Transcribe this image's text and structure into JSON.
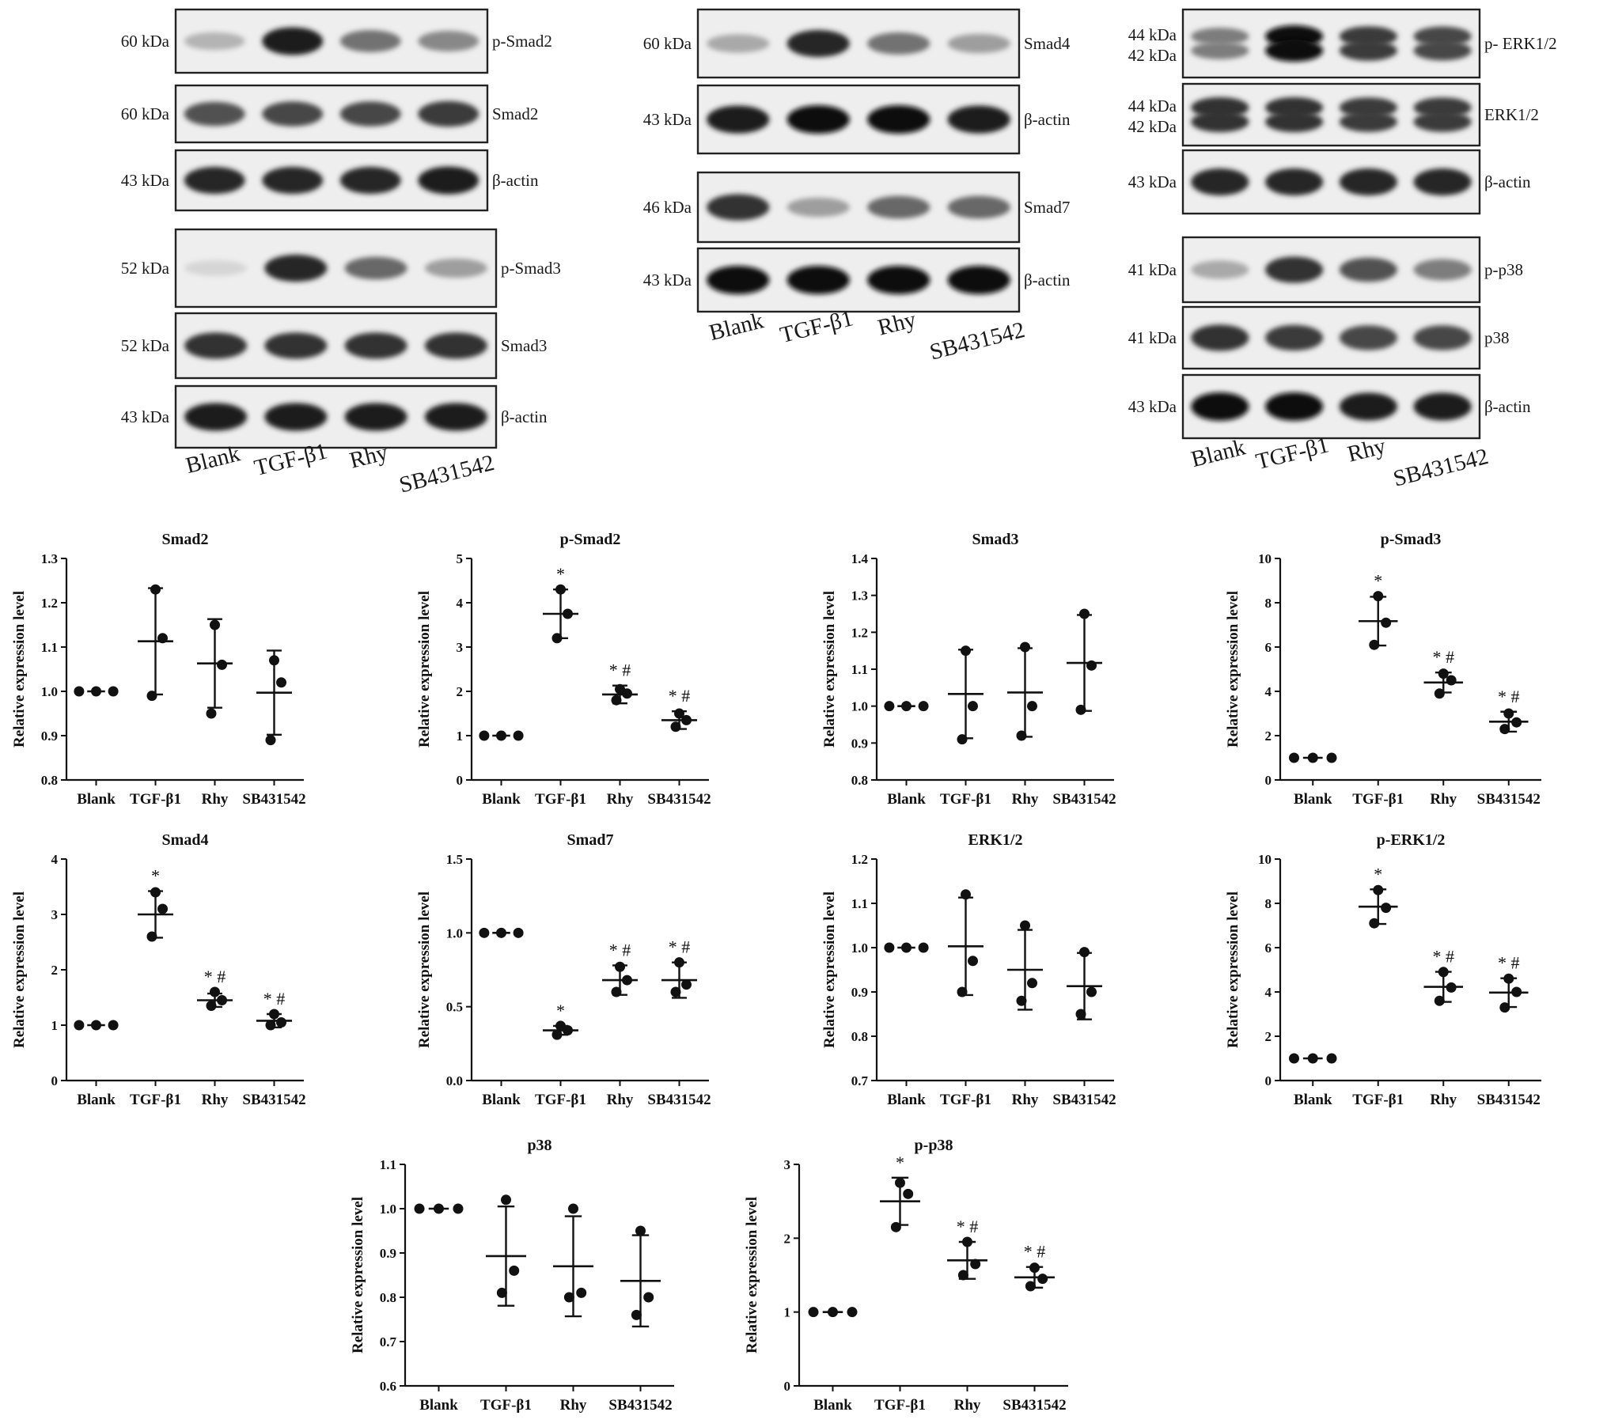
{
  "blots": {
    "lanes": [
      "Blank",
      "TGF-β1",
      "Rhy",
      "SB431542"
    ],
    "groups": [
      {
        "rows": [
          {
            "protein": "p-Smad2",
            "mw": "60 kDa",
            "intensity": [
              0.25,
              0.95,
              0.55,
              0.45
            ]
          },
          {
            "protein": "Smad2",
            "mw": "60 kDa",
            "intensity": [
              0.7,
              0.75,
              0.75,
              0.8
            ]
          },
          {
            "protein": "β-actin",
            "mw": "43 kDa",
            "intensity": [
              0.9,
              0.9,
              0.9,
              0.95
            ]
          }
        ]
      },
      {
        "rows": [
          {
            "protein": "p-Smad3",
            "mw": "52 kDa",
            "intensity": [
              0.1,
              0.9,
              0.6,
              0.35
            ]
          },
          {
            "protein": "Smad3",
            "mw": "52 kDa",
            "intensity": [
              0.85,
              0.85,
              0.85,
              0.85
            ]
          },
          {
            "protein": "β-actin",
            "mw": "43 kDa",
            "intensity": [
              0.95,
              0.95,
              0.95,
              0.95
            ]
          }
        ]
      },
      {
        "rows": [
          {
            "protein": "Smad4",
            "mw": "60 kDa",
            "intensity": [
              0.3,
              0.9,
              0.55,
              0.35
            ]
          },
          {
            "protein": "β-actin",
            "mw": "43 kDa",
            "intensity": [
              0.95,
              1.0,
              1.0,
              0.95
            ]
          }
        ]
      },
      {
        "rows": [
          {
            "protein": "Smad7",
            "mw": "46 kDa",
            "intensity": [
              0.85,
              0.35,
              0.6,
              0.6
            ]
          },
          {
            "protein": "β-actin",
            "mw": "43 kDa",
            "intensity": [
              1.0,
              1.0,
              1.0,
              1.0
            ]
          }
        ]
      },
      {
        "rows": [
          {
            "protein": "p- ERK1/2",
            "mw": "44 kDa",
            "mw2": "42 kDa",
            "intensity": [
              0.5,
              1.0,
              0.8,
              0.75
            ]
          },
          {
            "protein": "ERK1/2",
            "mw": "44 kDa",
            "mw2": "42 kDa",
            "intensity": [
              0.85,
              0.85,
              0.8,
              0.8
            ]
          },
          {
            "protein": "β-actin",
            "mw": "43 kDa",
            "intensity": [
              0.9,
              0.9,
              0.9,
              0.9
            ]
          }
        ]
      },
      {
        "rows": [
          {
            "protein": "p-p38",
            "mw": "41 kDa",
            "intensity": [
              0.3,
              0.85,
              0.7,
              0.5
            ]
          },
          {
            "protein": "p38",
            "mw": "41 kDa",
            "intensity": [
              0.85,
              0.8,
              0.75,
              0.75
            ]
          },
          {
            "protein": "β-actin",
            "mw": "43 kDa",
            "intensity": [
              1.0,
              1.0,
              0.95,
              0.95
            ]
          }
        ]
      }
    ]
  },
  "chart_data": [
    {
      "type": "scatter",
      "title": "Smad2",
      "ylabel": "Relative expression level",
      "categories": [
        "Blank",
        "TGF-β1",
        "Rhy",
        "SB431542"
      ],
      "ylim": [
        0.8,
        1.3
      ],
      "yticks": [
        "0.8",
        "0.9",
        "1.0",
        "1.1",
        "1.2",
        "1.3"
      ],
      "points": [
        [
          1.0,
          1.0,
          1.0
        ],
        [
          0.99,
          1.12,
          1.23
        ],
        [
          0.95,
          1.06,
          1.15
        ],
        [
          0.89,
          1.02,
          1.07
        ]
      ],
      "mean": [
        1.0,
        1.113,
        1.063,
        0.997
      ],
      "sd": [
        0.0,
        0.12,
        0.1,
        0.095
      ],
      "markers": [
        "",
        "",
        "",
        ""
      ]
    },
    {
      "type": "scatter",
      "title": "p-Smad2",
      "ylabel": "Relative expression level",
      "categories": [
        "Blank",
        "TGF-β1",
        "Rhy",
        "SB431542"
      ],
      "ylim": [
        0,
        5
      ],
      "yticks": [
        "0",
        "1",
        "2",
        "3",
        "4",
        "5"
      ],
      "points": [
        [
          1.0,
          1.0,
          1.0
        ],
        [
          3.2,
          3.75,
          4.3
        ],
        [
          1.8,
          1.95,
          2.05
        ],
        [
          1.2,
          1.35,
          1.5
        ]
      ],
      "mean": [
        1.0,
        3.75,
        1.93,
        1.35
      ],
      "sd": [
        0.0,
        0.55,
        0.2,
        0.2
      ],
      "markers": [
        "",
        "*",
        "*#",
        "*#"
      ]
    },
    {
      "type": "scatter",
      "title": "Smad3",
      "ylabel": "Relative expression level",
      "categories": [
        "Blank",
        "TGF-β1",
        "Rhy",
        "SB431542"
      ],
      "ylim": [
        0.8,
        1.4
      ],
      "yticks": [
        "0.8",
        "0.9",
        "1.0",
        "1.1",
        "1.2",
        "1.3",
        "1.4"
      ],
      "points": [
        [
          1.0,
          1.0,
          1.0
        ],
        [
          0.91,
          1.0,
          1.15
        ],
        [
          0.92,
          1.0,
          1.16
        ],
        [
          0.99,
          1.11,
          1.25
        ]
      ],
      "mean": [
        1.0,
        1.033,
        1.037,
        1.117
      ],
      "sd": [
        0.0,
        0.12,
        0.12,
        0.13
      ],
      "markers": [
        "",
        "",
        "",
        ""
      ]
    },
    {
      "type": "scatter",
      "title": "p-Smad3",
      "ylabel": "Relative expression level",
      "categories": [
        "Blank",
        "TGF-β1",
        "Rhy",
        "SB431542"
      ],
      "ylim": [
        0,
        10
      ],
      "yticks": [
        "0",
        "2",
        "4",
        "6",
        "8",
        "10"
      ],
      "points": [
        [
          1.0,
          1.0,
          1.0
        ],
        [
          6.1,
          7.1,
          8.3
        ],
        [
          3.9,
          4.5,
          4.8
        ],
        [
          2.3,
          2.6,
          3.0
        ]
      ],
      "mean": [
        1.0,
        7.17,
        4.4,
        2.63
      ],
      "sd": [
        0.0,
        1.1,
        0.45,
        0.45
      ],
      "markers": [
        "",
        "*",
        "*#",
        "*#"
      ]
    },
    {
      "type": "scatter",
      "title": "Smad4",
      "ylabel": "Relative expression level",
      "categories": [
        "Blank",
        "TGF-β1",
        "Rhy",
        "SB431542"
      ],
      "ylim": [
        0,
        4
      ],
      "yticks": [
        "0",
        "1",
        "2",
        "3",
        "4"
      ],
      "points": [
        [
          1.0,
          1.0,
          1.0
        ],
        [
          2.6,
          3.1,
          3.4
        ],
        [
          1.35,
          1.45,
          1.6
        ],
        [
          1.0,
          1.05,
          1.2
        ]
      ],
      "mean": [
        1.0,
        3.0,
        1.45,
        1.08
      ],
      "sd": [
        0.0,
        0.42,
        0.12,
        0.12
      ],
      "markers": [
        "",
        "*",
        "*#",
        "*#"
      ]
    },
    {
      "type": "scatter",
      "title": "Smad7",
      "ylabel": "Relative expression level",
      "categories": [
        "Blank",
        "TGF-β1",
        "Rhy",
        "SB431542"
      ],
      "ylim": [
        0,
        1.5
      ],
      "yticks": [
        "0.0",
        "0.5",
        "1.0",
        "1.5"
      ],
      "points": [
        [
          1.0,
          1.0,
          1.0
        ],
        [
          0.31,
          0.34,
          0.37
        ],
        [
          0.6,
          0.68,
          0.77
        ],
        [
          0.6,
          0.65,
          0.8
        ]
      ],
      "mean": [
        1.0,
        0.34,
        0.68,
        0.68
      ],
      "sd": [
        0.0,
        0.03,
        0.1,
        0.12
      ],
      "markers": [
        "",
        "*",
        "*#",
        "*#"
      ]
    },
    {
      "type": "scatter",
      "title": "ERK1/2",
      "ylabel": "Relative expression level",
      "categories": [
        "Blank",
        "TGF-β1",
        "Rhy",
        "SB431542"
      ],
      "ylim": [
        0.7,
        1.2
      ],
      "yticks": [
        "0.7",
        "0.8",
        "0.9",
        "1.0",
        "1.1",
        "1.2"
      ],
      "points": [
        [
          1.0,
          1.0,
          1.0
        ],
        [
          0.9,
          0.97,
          1.12
        ],
        [
          0.88,
          0.92,
          1.05
        ],
        [
          0.85,
          0.9,
          0.99
        ]
      ],
      "mean": [
        1.0,
        1.003,
        0.95,
        0.913
      ],
      "sd": [
        0.0,
        0.11,
        0.09,
        0.075
      ],
      "markers": [
        "",
        "",
        "",
        ""
      ]
    },
    {
      "type": "scatter",
      "title": "p-ERK1/2",
      "ylabel": "Relative expression level",
      "categories": [
        "Blank",
        "TGF-β1",
        "Rhy",
        "SB431542"
      ],
      "ylim": [
        0,
        10
      ],
      "yticks": [
        "0",
        "2",
        "4",
        "6",
        "8",
        "10"
      ],
      "points": [
        [
          1.0,
          1.0,
          1.0
        ],
        [
          7.1,
          7.8,
          8.6
        ],
        [
          3.6,
          4.2,
          4.9
        ],
        [
          3.3,
          4.0,
          4.6
        ]
      ],
      "mean": [
        1.0,
        7.85,
        4.23,
        3.97
      ],
      "sd": [
        0.0,
        0.78,
        0.68,
        0.65
      ],
      "markers": [
        "",
        "*",
        "*#",
        "*#"
      ]
    },
    {
      "type": "scatter",
      "title": "p38",
      "ylabel": "Relative expression level",
      "categories": [
        "Blank",
        "TGF-β1",
        "Rhy",
        "SB431542"
      ],
      "ylim": [
        0.6,
        1.1
      ],
      "yticks": [
        "0.6",
        "0.7",
        "0.8",
        "0.9",
        "1.0",
        "1.1"
      ],
      "points": [
        [
          1.0,
          1.0,
          1.0
        ],
        [
          0.81,
          0.86,
          1.02
        ],
        [
          0.8,
          0.81,
          1.0
        ],
        [
          0.76,
          0.8,
          0.95
        ]
      ],
      "mean": [
        1.0,
        0.893,
        0.87,
        0.837
      ],
      "sd": [
        0.0,
        0.112,
        0.113,
        0.103
      ],
      "markers": [
        "",
        "",
        "",
        ""
      ]
    },
    {
      "type": "scatter",
      "title": "p-p38",
      "ylabel": "Relative expression level",
      "categories": [
        "Blank",
        "TGF-β1",
        "Rhy",
        "SB431542"
      ],
      "ylim": [
        0,
        3
      ],
      "yticks": [
        "0",
        "1",
        "2",
        "3"
      ],
      "points": [
        [
          1.0,
          1.0,
          1.0
        ],
        [
          2.15,
          2.6,
          2.75
        ],
        [
          1.5,
          1.65,
          1.95
        ],
        [
          1.35,
          1.45,
          1.6
        ]
      ],
      "mean": [
        1.0,
        2.5,
        1.7,
        1.47
      ],
      "sd": [
        0.0,
        0.32,
        0.25,
        0.14
      ],
      "markers": [
        "",
        "*",
        "*#",
        "*#"
      ]
    }
  ]
}
